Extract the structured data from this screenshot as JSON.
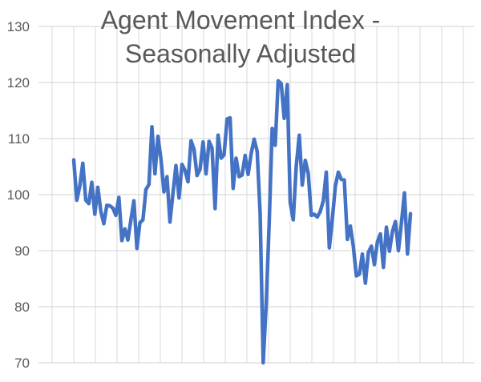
{
  "chart_data": {
    "type": "line",
    "title_lines": [
      "Agent Movement Index -",
      "Seasonally Adjusted"
    ],
    "xlabel": "",
    "ylabel": "",
    "ylim": [
      70,
      130
    ],
    "y_ticks": [
      "70",
      "80",
      "90",
      "100",
      "110",
      "120",
      "130"
    ],
    "grid": true,
    "legend": "none",
    "series_color": "#4472C4",
    "gridline_color": "#D9D9D9",
    "series": [
      {
        "values": [
          106.2,
          99.0,
          101.5,
          105.6,
          99.0,
          98.4,
          102.2,
          96.5,
          101.3,
          97.0,
          94.8,
          98.1,
          98.0,
          97.6,
          96.3,
          99.5,
          91.8,
          93.9,
          91.9,
          95.5,
          98.9,
          90.4,
          95.0,
          95.5,
          100.9,
          101.8,
          112.1,
          103.7,
          110.4,
          106.3,
          100.5,
          103.2,
          95.1,
          100.3,
          105.2,
          99.4,
          105.4,
          104.3,
          102.3,
          109.6,
          108.1,
          103.4,
          104.5,
          109.4,
          103.7,
          109.5,
          108.3,
          97.5,
          110.6,
          106.5,
          107.1,
          113.5,
          113.7,
          101.1,
          106.5,
          103.2,
          103.5,
          107.0,
          103.6,
          107.3,
          109.9,
          107.7,
          96.6,
          70.0,
          80.3,
          95.0,
          111.8,
          108.8,
          120.3,
          119.8,
          113.6,
          119.6,
          98.6,
          95.5,
          105.0,
          110.6,
          101.7,
          106.1,
          103.8,
          96.3,
          96.5,
          96.0,
          97.0,
          98.9,
          104.0,
          90.5,
          95.5,
          101.5,
          104.0,
          102.7,
          102.6,
          92.0,
          94.4,
          90.7,
          85.5,
          85.8,
          89.4,
          84.2,
          89.7,
          90.8,
          87.5,
          91.6,
          93.0,
          87.0,
          94.2,
          89.9,
          93.4,
          95.2,
          90.0,
          95.0,
          100.3,
          89.4,
          96.6
        ]
      }
    ]
  }
}
